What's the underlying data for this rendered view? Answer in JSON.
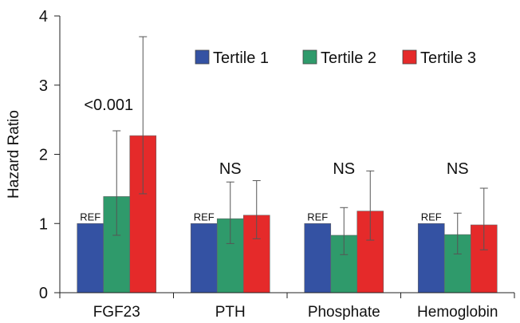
{
  "chart_data": {
    "type": "bar",
    "ylabel": "Hazard Ratio",
    "ylim": [
      0,
      4
    ],
    "yticks": [
      0,
      1,
      2,
      3,
      4
    ],
    "categories": [
      "FGF23",
      "PTH",
      "Phosphate",
      "Hemoglobin"
    ],
    "series": [
      {
        "name": "Tertile 1",
        "color": "#3452a3",
        "values": [
          1.0,
          1.0,
          1.0,
          1.0
        ],
        "errors": [
          null,
          null,
          null,
          null
        ]
      },
      {
        "name": "Tertile 2",
        "color": "#2f9a6b",
        "values": [
          1.39,
          1.07,
          0.83,
          0.84
        ],
        "errors": [
          [
            0.83,
            2.34
          ],
          [
            0.71,
            1.6
          ],
          [
            0.55,
            1.23
          ],
          [
            0.56,
            1.15
          ]
        ]
      },
      {
        "name": "Tertile 3",
        "color": "#e52a2a",
        "values": [
          2.27,
          1.12,
          1.18,
          0.98
        ],
        "errors": [
          [
            1.43,
            3.7
          ],
          [
            0.78,
            1.62
          ],
          [
            0.76,
            1.76
          ],
          [
            0.62,
            1.51
          ]
        ]
      }
    ],
    "significance": [
      "<0.001",
      "NS",
      "NS",
      "NS"
    ],
    "reference_label": "REF",
    "legend_position": "top-right",
    "grid": false
  }
}
